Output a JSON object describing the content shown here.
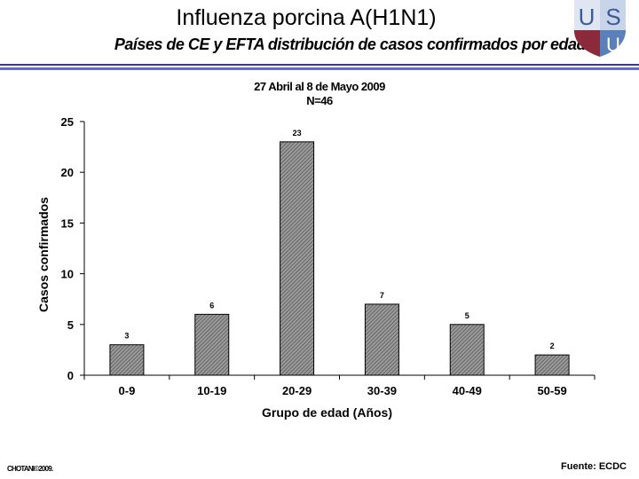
{
  "header": {
    "title": "Influenza porcina A(H1N1)",
    "subtitle": "Países de CE y EFTA distribución de casos confirmados por edad",
    "logo_text": "USU"
  },
  "chart_data": {
    "type": "bar",
    "title": "27 Abril al 8 de Mayo 2009",
    "subtitle": "N=46",
    "xlabel": "Grupo de edad (Años)",
    "ylabel": "Casos confirmados",
    "categories": [
      "0-9",
      "10-19",
      "20-29",
      "30-39",
      "40-49",
      "50-59"
    ],
    "values": [
      3,
      6,
      23,
      7,
      5,
      2
    ],
    "ylim": [
      0,
      25
    ],
    "yticks": [
      0,
      5,
      10,
      15,
      20,
      25
    ],
    "grid": false,
    "bar_pattern": "diagonal hatch gray"
  },
  "footer": {
    "copyright": "CHOTANI©2009.",
    "source": "Fuente: ECDC"
  }
}
